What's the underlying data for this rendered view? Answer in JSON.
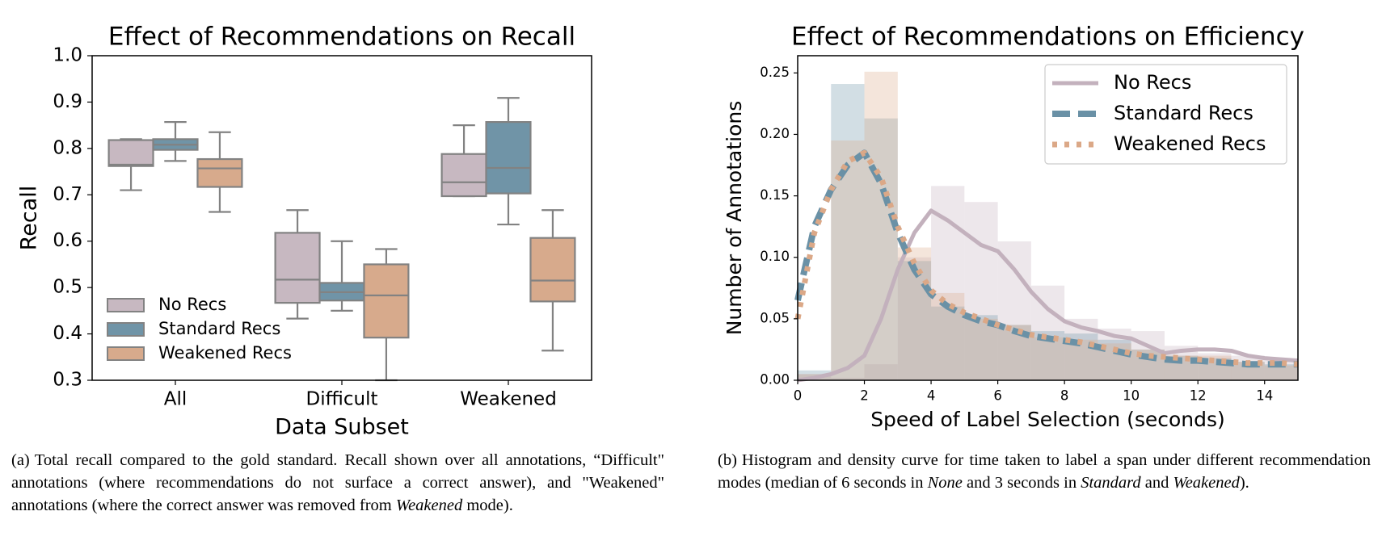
{
  "chart_data": [
    {
      "type": "box",
      "title": "Effect of Recommendations on Recall",
      "x_label": "Data Subset",
      "y_label": "Recall",
      "categories": [
        "All",
        "Difficult",
        "Weakened"
      ],
      "series": [
        {
          "name": "No Recs",
          "color": "#c7b8c1",
          "values": [
            [
              0.71,
              0.762,
              0.765,
              0.818,
              0.82
            ],
            [
              0.433,
              0.467,
              0.517,
              0.618,
              0.667
            ],
            [
              0.697,
              0.697,
              0.727,
              0.788,
              0.85
            ]
          ]
        },
        {
          "name": "Standard Recs",
          "color": "#7094a7",
          "values": [
            [
              0.773,
              0.797,
              0.808,
              0.82,
              0.857
            ],
            [
              0.45,
              0.472,
              0.49,
              0.51,
              0.6
            ],
            [
              0.636,
              0.703,
              0.758,
              0.857,
              0.909
            ]
          ]
        },
        {
          "name": "Weakened Recs",
          "color": "#d7aa8c",
          "values": [
            [
              0.663,
              0.717,
              0.757,
              0.777,
              0.835
            ],
            [
              0.3,
              0.392,
              0.483,
              0.55,
              0.583
            ],
            [
              0.364,
              0.47,
              0.515,
              0.607,
              0.667
            ]
          ]
        }
      ],
      "ylim": [
        0.3,
        1.0
      ],
      "yticks": [
        0.3,
        0.4,
        0.5,
        0.6,
        0.7,
        0.8,
        0.9,
        {
          "value": 1.0,
          "label": "1.0"
        }
      ],
      "legend": "lower left"
    },
    {
      "type": "histogram",
      "title": "Effect of Recommendations on Efficiency",
      "x_label": "Speed of Label Selection (seconds)",
      "y_label": "Number of Annotations",
      "bins": [
        0,
        1,
        2,
        3,
        4,
        5,
        6,
        7,
        8,
        9,
        10,
        11,
        12,
        13,
        14,
        15
      ],
      "density_x": [
        0,
        0.5,
        1,
        1.5,
        2,
        2.5,
        3,
        3.5,
        4,
        4.5,
        5,
        5.5,
        6,
        6.5,
        7,
        7.5,
        8,
        8.5,
        9,
        9.5,
        10,
        10.5,
        11,
        11.5,
        12,
        12.5,
        13,
        13.5,
        14,
        14.5,
        15
      ],
      "series": [
        {
          "name": "No Recs",
          "color": "#c3b1bd",
          "line_style": "solid",
          "values": [
            0.005,
            0.002,
            0.013,
            0.1,
            0.158,
            0.145,
            0.113,
            0.077,
            0.05,
            0.042,
            0.04,
            0.028,
            0.022,
            0.02,
            0.017
          ],
          "density": [
            0.0,
            0.002,
            0.005,
            0.01,
            0.02,
            0.05,
            0.09,
            0.12,
            0.138,
            0.13,
            0.12,
            0.11,
            0.105,
            0.09,
            0.072,
            0.058,
            0.048,
            0.043,
            0.04,
            0.036,
            0.034,
            0.028,
            0.022,
            0.024,
            0.025,
            0.025,
            0.024,
            0.02,
            0.018,
            0.017,
            0.016
          ]
        },
        {
          "name": "Standard Recs",
          "color": "#6a91a6",
          "line_style": "dashed",
          "values": [
            0.008,
            0.241,
            0.213,
            0.097,
            0.06,
            0.053,
            0.045,
            0.04,
            0.038,
            0.033,
            0.025,
            0.02,
            0.018,
            0.015,
            0.013
          ],
          "density": [
            0.065,
            0.125,
            0.155,
            0.175,
            0.185,
            0.16,
            0.12,
            0.09,
            0.07,
            0.06,
            0.053,
            0.048,
            0.045,
            0.04,
            0.036,
            0.034,
            0.032,
            0.03,
            0.027,
            0.024,
            0.021,
            0.019,
            0.017,
            0.016,
            0.016,
            0.015,
            0.014,
            0.013,
            0.013,
            0.013,
            0.013
          ]
        },
        {
          "name": "Weakened Recs",
          "color": "#dba887",
          "line_style": "dotted",
          "values": [
            0.005,
            0.195,
            0.251,
            0.108,
            0.071,
            0.05,
            0.045,
            0.035,
            0.033,
            0.03,
            0.025,
            0.02,
            0.02,
            0.015,
            0.012
          ],
          "density": [
            0.05,
            0.12,
            0.155,
            0.178,
            0.185,
            0.165,
            0.125,
            0.095,
            0.073,
            0.062,
            0.055,
            0.05,
            0.045,
            0.041,
            0.037,
            0.035,
            0.033,
            0.031,
            0.028,
            0.025,
            0.022,
            0.02,
            0.019,
            0.018,
            0.017,
            0.016,
            0.015,
            0.014,
            0.014,
            0.014,
            0.013
          ]
        }
      ],
      "xlim": [
        0,
        15
      ],
      "xticks": [
        0,
        2,
        4,
        6,
        8,
        10,
        12,
        14
      ],
      "ylim": [
        0,
        0.264
      ],
      "yticks": [
        {
          "value": 0,
          "label": "0.00"
        },
        0.05,
        {
          "value": 0.1,
          "label": "0.10"
        },
        0.15,
        {
          "value": 0.2,
          "label": "0.20"
        },
        0.25
      ],
      "legend": "upper right"
    }
  ],
  "captions": [
    {
      "label": "(a)",
      "parts": [
        "Total recall compared to the gold standard. Recall shown over all annotations, “Difficult\" annotations (where recommendations do not surface a correct answer), and \"Weakened\" annotations (where the correct answer was removed from ",
        "Weakened",
        " mode)."
      ]
    },
    {
      "label": "(b)",
      "parts": [
        "Histogram and density curve for time taken to label a span under different recommendation modes (median of 6 seconds in ",
        "None",
        " and 3 seconds in ",
        "Standard",
        " and ",
        "Weakened",
        ")."
      ]
    }
  ]
}
